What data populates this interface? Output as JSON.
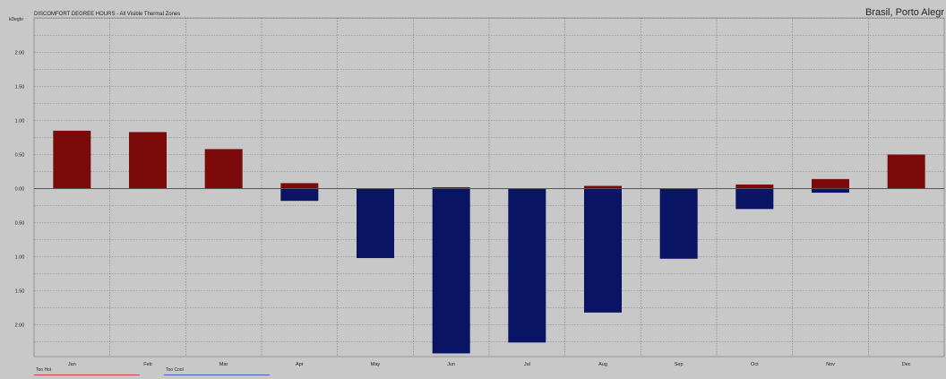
{
  "header": {
    "title": "DISCOMFORT DEGREE HOURS - All Visible Thermal Zones",
    "location": "Brasil, Porto Alegr",
    "y_unit": "kDeghr"
  },
  "legend": {
    "items": [
      {
        "label": "Too Hot",
        "color": "#d04040"
      },
      {
        "label": "Too Cool",
        "color": "#4060c0"
      }
    ]
  },
  "colors": {
    "hot_bar": "#7b0a0a",
    "cool_bar": "#0a1464",
    "background": "#c8c8c8",
    "grid": "#7a7a7a",
    "zero_line": "#555555"
  },
  "chart_data": {
    "type": "bar",
    "title": "DISCOMFORT DEGREE HOURS - All Visible Thermal Zones",
    "subtitle": "Brasil, Porto Alegr",
    "ylabel": "kDeghr",
    "categories": [
      "Jan",
      "Feb",
      "Mar",
      "Apr",
      "May",
      "Jun",
      "Jul",
      "Aug",
      "Sep",
      "Oct",
      "Nov",
      "Dec"
    ],
    "series": [
      {
        "name": "Too Hot",
        "values": [
          0.85,
          0.83,
          0.58,
          0.08,
          0.0,
          0.02,
          0.0,
          0.04,
          0.0,
          0.06,
          0.14,
          0.5
        ]
      },
      {
        "name": "Too Cool",
        "values": [
          0.0,
          0.0,
          0.0,
          -0.18,
          -1.02,
          -2.42,
          -2.26,
          -1.82,
          -1.03,
          -0.3,
          -0.06,
          0.0
        ]
      }
    ],
    "ylim": [
      -2.6,
      2.6
    ],
    "ytick_labels": [
      "2.00",
      "1.50",
      "1.00",
      "0.50",
      "0.00",
      "0.50",
      "1.00",
      "1.50",
      "2.00"
    ],
    "ytick_values": [
      2.0,
      1.5,
      1.0,
      0.5,
      0.0,
      -0.5,
      -1.0,
      -1.5,
      -2.0
    ],
    "grid": true,
    "legend_position": "bottom-left"
  }
}
